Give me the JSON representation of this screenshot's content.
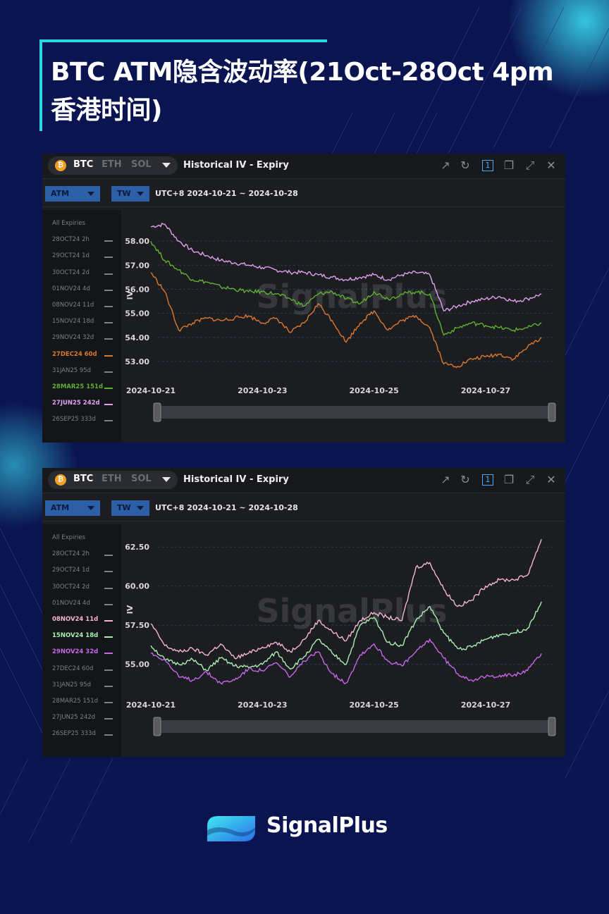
{
  "page": {
    "title": "BTC ATM隐含波动率(21Oct-28Oct 4pm 香港时间)",
    "logo_text": "SignalPlus",
    "bg_color": "#0a1450",
    "accent_color": "#2ad4e4"
  },
  "panels": [
    {
      "coins": [
        "BTC",
        "ETH",
        "SOL"
      ],
      "panel_title": "Historical IV - Expiry",
      "atm_label": "ATM",
      "tw_label": "TW",
      "range_label": "UTC+8 2024-10-21 ~ 2024-10-28",
      "watermark": "SignalPlus",
      "sidebar": [
        {
          "label": "All Expiries",
          "active": false,
          "color": "#7d8088"
        },
        {
          "label": "28OCT24 2h",
          "active": false,
          "color": "#7d8088"
        },
        {
          "label": "29OCT24 1d",
          "active": false,
          "color": "#7d8088"
        },
        {
          "label": "30OCT24 2d",
          "active": false,
          "color": "#7d8088"
        },
        {
          "label": "01NOV24 4d",
          "active": false,
          "color": "#7d8088"
        },
        {
          "label": "08NOV24 11d",
          "active": false,
          "color": "#7d8088"
        },
        {
          "label": "15NOV24 18d",
          "active": false,
          "color": "#7d8088"
        },
        {
          "label": "29NOV24 32d",
          "active": false,
          "color": "#7d8088"
        },
        {
          "label": "27DEC24 60d",
          "active": true,
          "color": "#d9782e"
        },
        {
          "label": "31JAN25 95d",
          "active": false,
          "color": "#7d8088"
        },
        {
          "label": "28MAR25 151d",
          "active": true,
          "color": "#5db030"
        },
        {
          "label": "27JUN25 242d",
          "active": true,
          "color": "#e0a0f0"
        },
        {
          "label": "26SEP25 333d",
          "active": false,
          "color": "#7d8088"
        }
      ]
    },
    {
      "coins": [
        "BTC",
        "ETH",
        "SOL"
      ],
      "panel_title": "Historical IV - Expiry",
      "atm_label": "ATM",
      "tw_label": "TW",
      "range_label": "UTC+8 2024-10-21 ~ 2024-10-28",
      "watermark": "SignalPlus",
      "sidebar": [
        {
          "label": "All Expiries",
          "active": false,
          "color": "#7d8088"
        },
        {
          "label": "28OCT24 2h",
          "active": false,
          "color": "#7d8088"
        },
        {
          "label": "29OCT24 1d",
          "active": false,
          "color": "#7d8088"
        },
        {
          "label": "30OCT24 2d",
          "active": false,
          "color": "#7d8088"
        },
        {
          "label": "01NOV24 4d",
          "active": false,
          "color": "#7d8088"
        },
        {
          "label": "08NOV24 11d",
          "active": true,
          "color": "#f4b6cf"
        },
        {
          "label": "15NOV24 18d",
          "active": true,
          "color": "#a8f0b0"
        },
        {
          "label": "29NOV24 32d",
          "active": true,
          "color": "#c468e8"
        },
        {
          "label": "27DEC24 60d",
          "active": false,
          "color": "#7d8088"
        },
        {
          "label": "31JAN25 95d",
          "active": false,
          "color": "#7d8088"
        },
        {
          "label": "28MAR25 151d",
          "active": false,
          "color": "#7d8088"
        },
        {
          "label": "27JUN25 242d",
          "active": false,
          "color": "#7d8088"
        },
        {
          "label": "26SEP25 333d",
          "active": false,
          "color": "#7d8088"
        }
      ]
    }
  ],
  "chart_data": [
    {
      "type": "line",
      "ylabel": "IV",
      "ylim": [
        52.5,
        59.0
      ],
      "yticks": [
        53.0,
        54.0,
        55.0,
        56.0,
        57.0,
        58.0
      ],
      "ytick_labels": [
        "53.00",
        "54.00",
        "55.00",
        "56.00",
        "57.00",
        "58.00"
      ],
      "xticks": [
        "2024-10-21",
        "2024-10-23",
        "2024-10-25",
        "2024-10-27"
      ],
      "x": [
        0,
        0.25,
        0.5,
        0.75,
        1,
        1.25,
        1.5,
        1.75,
        2,
        2.25,
        2.5,
        2.75,
        3,
        3.25,
        3.5,
        3.75,
        4,
        4.25,
        4.5,
        4.75,
        5,
        5.25,
        5.5,
        5.75,
        6,
        6.25,
        6.5,
        6.75,
        7
      ],
      "series": [
        {
          "name": "27JUN25 242d",
          "color": "#e0a0f0",
          "values": [
            58.6,
            58.7,
            58.0,
            57.6,
            57.4,
            57.2,
            57.1,
            57.0,
            56.9,
            56.8,
            56.7,
            56.7,
            56.6,
            56.5,
            56.4,
            56.5,
            56.6,
            56.4,
            56.6,
            56.7,
            56.6,
            55.1,
            55.3,
            55.5,
            55.6,
            55.7,
            55.5,
            55.6,
            55.8
          ]
        },
        {
          "name": "28MAR25 151d",
          "color": "#5db030",
          "values": [
            58.0,
            57.2,
            56.8,
            56.4,
            56.3,
            56.1,
            56.0,
            55.9,
            55.9,
            55.8,
            55.6,
            55.3,
            55.8,
            55.9,
            55.6,
            55.4,
            55.9,
            55.6,
            55.8,
            55.9,
            55.8,
            54.1,
            54.4,
            54.6,
            54.5,
            54.4,
            54.3,
            54.4,
            54.6
          ]
        },
        {
          "name": "27DEC24 60d",
          "color": "#d9782e",
          "values": [
            56.7,
            55.9,
            54.3,
            54.6,
            54.8,
            54.7,
            54.8,
            54.9,
            54.6,
            54.8,
            54.2,
            54.6,
            55.4,
            54.7,
            53.8,
            54.6,
            55.1,
            54.3,
            54.7,
            54.9,
            54.4,
            52.9,
            52.8,
            53.1,
            53.2,
            53.3,
            53.1,
            53.6,
            54.0
          ]
        }
      ]
    },
    {
      "type": "line",
      "ylabel": "IV",
      "ylim": [
        53.5,
        63.5
      ],
      "yticks": [
        55.0,
        57.5,
        60.0,
        62.5
      ],
      "ytick_labels": [
        "55.00",
        "57.50",
        "60.00",
        "62.50"
      ],
      "xticks": [
        "2024-10-21",
        "2024-10-23",
        "2024-10-25",
        "2024-10-27"
      ],
      "x": [
        0,
        0.25,
        0.5,
        0.75,
        1,
        1.25,
        1.5,
        1.75,
        2,
        2.25,
        2.5,
        2.75,
        3,
        3.25,
        3.5,
        3.75,
        4,
        4.25,
        4.5,
        4.75,
        5,
        5.25,
        5.5,
        5.75,
        6,
        6.25,
        6.5,
        6.75,
        7
      ],
      "series": [
        {
          "name": "08NOV24 11d",
          "color": "#f4b6cf",
          "values": [
            57.6,
            56.2,
            55.8,
            56.0,
            55.6,
            56.3,
            55.4,
            55.7,
            56.1,
            56.4,
            55.8,
            56.6,
            57.8,
            57.1,
            56.5,
            57.8,
            58.3,
            58.0,
            57.8,
            61.2,
            61.5,
            59.8,
            58.7,
            59.1,
            60.0,
            60.4,
            60.4,
            60.7,
            63.0
          ]
        },
        {
          "name": "15NOV24 18d",
          "color": "#a8f0b0",
          "values": [
            56.2,
            55.3,
            55.0,
            55.3,
            54.6,
            55.4,
            54.9,
            54.8,
            55.0,
            55.8,
            54.7,
            55.5,
            56.6,
            55.7,
            55.0,
            57.5,
            58.0,
            56.4,
            56.2,
            57.8,
            58.7,
            57.0,
            56.0,
            56.1,
            56.6,
            56.9,
            57.0,
            57.3,
            59.0
          ]
        },
        {
          "name": "29NOV24 32d",
          "color": "#c468e8",
          "values": [
            55.7,
            55.3,
            54.2,
            54.0,
            54.5,
            53.8,
            54.0,
            54.7,
            54.6,
            55.1,
            54.2,
            55.2,
            55.8,
            54.4,
            53.8,
            55.6,
            56.3,
            55.2,
            54.9,
            55.8,
            56.6,
            55.4,
            54.4,
            54.0,
            54.2,
            54.3,
            54.3,
            54.6,
            55.7
          ]
        }
      ]
    }
  ]
}
